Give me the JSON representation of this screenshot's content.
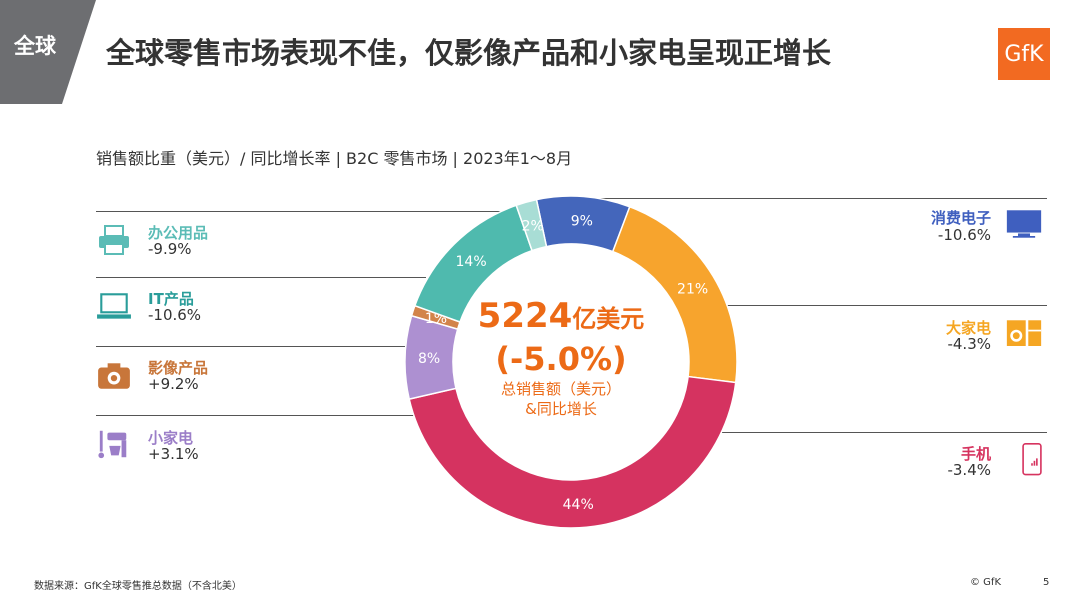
{
  "header": {
    "region_label": "全球",
    "title": "全球零售市场表现不佳，仅影像产品和小家电呈现正增长",
    "logo_text": "GfK"
  },
  "subtitle": "销售额比重（美元）/ 同比增长率 | B2C 零售市场 | 2023年1～8月",
  "center": {
    "amount": "5224",
    "amount_unit": "亿美元",
    "growth": "(-5.0%)",
    "label_line1": "总销售额（美元）",
    "label_line2": "&同比增长"
  },
  "categories_left": [
    {
      "name": "办公用品",
      "change": "-9.9%",
      "color": "#5bbcb6",
      "icon": "printer-icon"
    },
    {
      "name": "IT产品",
      "change": "-10.6%",
      "color": "#2a9d9a",
      "icon": "laptop-icon"
    },
    {
      "name": "影像产品",
      "change": "+9.2%",
      "color": "#c8763a",
      "icon": "camera-icon"
    },
    {
      "name": "小家电",
      "change": "+3.1%",
      "color": "#9b7ec8",
      "icon": "mixer-icon"
    }
  ],
  "categories_right": [
    {
      "name": "消费电子",
      "change": "-10.6%",
      "color": "#3f5fbf",
      "icon": "tv-icon"
    },
    {
      "name": "大家电",
      "change": "-4.3%",
      "color": "#f5a623",
      "icon": "appliance-icon"
    },
    {
      "name": "手机",
      "change": "-3.4%",
      "color": "#d6335f",
      "icon": "phone-icon"
    }
  ],
  "chart_data": {
    "type": "pie",
    "title": "销售额比重（美元）/ 同比增长率 | B2C 零售市场 | 2023年1～8月",
    "slices": [
      {
        "name": "消费电子",
        "value": 9,
        "label": "9%",
        "color": "#4466bb"
      },
      {
        "name": "大家电",
        "value": 21,
        "label": "21%",
        "color": "#f7a42d"
      },
      {
        "name": "手机",
        "value": 44,
        "label": "44%",
        "color": "#d53360"
      },
      {
        "name": "小家电",
        "value": 8,
        "label": "8%",
        "color": "#ad90d1"
      },
      {
        "name": "影像产品",
        "value": 1,
        "label": "1%",
        "color": "#d2844a"
      },
      {
        "name": "IT产品",
        "value": 14,
        "label": "14%",
        "color": "#4fbaae"
      },
      {
        "name": "办公用品",
        "value": 2,
        "label": "2%",
        "color": "#a8ddd5"
      }
    ]
  },
  "footer": {
    "source": "数据来源：GfK全球零售推总数据（不含北美）",
    "copyright": "© GfK",
    "page_number": "5"
  }
}
